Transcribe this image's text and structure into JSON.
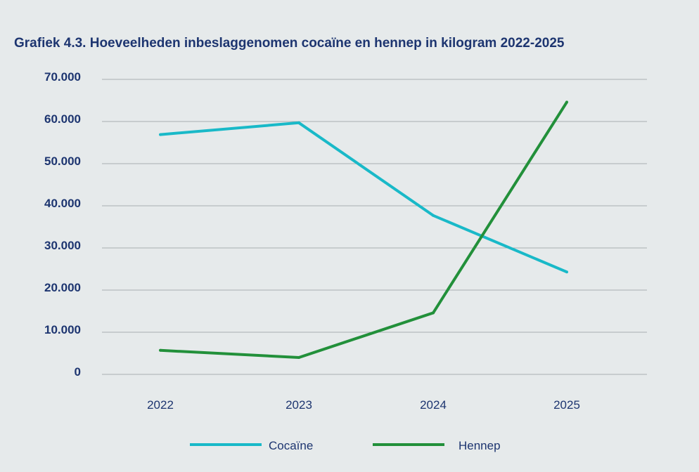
{
  "chart_data": {
    "type": "line",
    "title": "Grafiek 4.3. Hoeveelheden inbeslaggenomen cocaïne en hennep in kilogram 2022-2025",
    "xlabel": "",
    "ylabel": "",
    "categories": [
      "2022",
      "2023",
      "2024",
      "2025"
    ],
    "ylim": [
      0,
      70000
    ],
    "ytick_values": [
      0,
      10000,
      20000,
      30000,
      40000,
      50000,
      60000,
      70000
    ],
    "ytick_labels": [
      "0",
      "10.000",
      "20.000",
      "30.000",
      "40.000",
      "50.000",
      "60.000",
      "70.000"
    ],
    "grid": true,
    "legend_position": "bottom",
    "series": [
      {
        "name": "Cocaïne",
        "color": "#19b9c8",
        "values": [
          56900,
          59700,
          37700,
          24300
        ]
      },
      {
        "name": "Hennep",
        "color": "#22903a",
        "values": [
          5700,
          4000,
          14600,
          64600
        ]
      }
    ]
  }
}
